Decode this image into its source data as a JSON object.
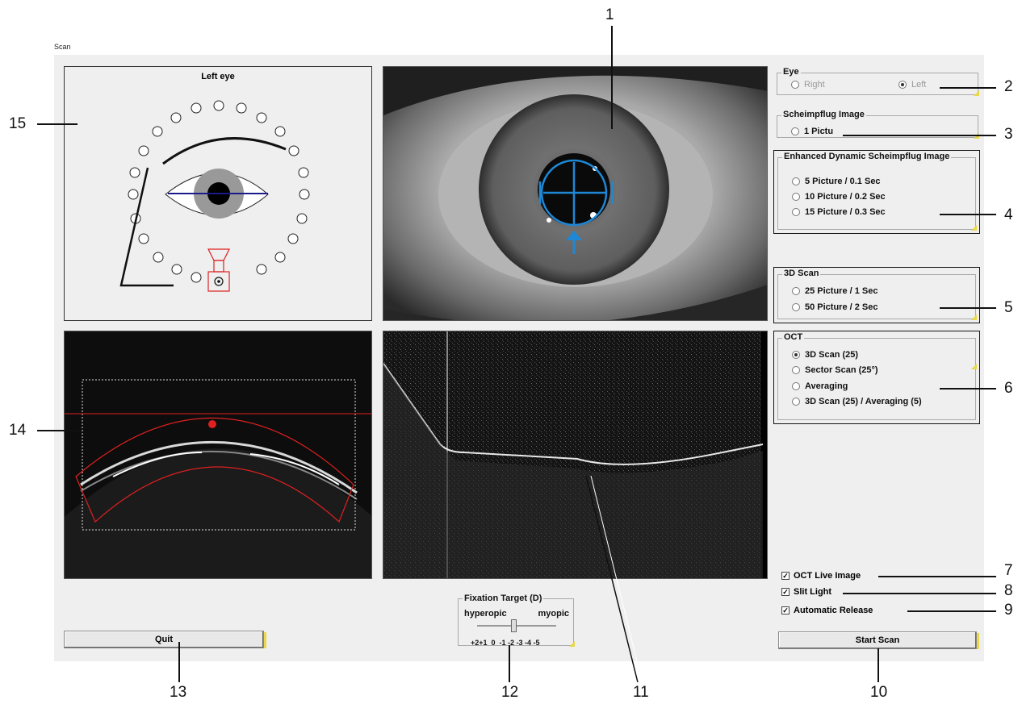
{
  "window": {
    "title": "Scan"
  },
  "eye_diagram": {
    "title": "Left eye"
  },
  "eye_group": {
    "legend": "Eye",
    "options": [
      {
        "label": "Right",
        "selected": false,
        "enabled": false
      },
      {
        "label": "Left",
        "selected": true,
        "enabled": false
      }
    ]
  },
  "scheimpflug_group": {
    "legend": "Scheimpflug Image",
    "options": [
      {
        "label": "1 Pictu",
        "selected": false
      }
    ]
  },
  "eds_group": {
    "legend": "Enhanced Dynamic Scheimpflug Image",
    "options": [
      {
        "label": "5 Picture / 0.1 Sec",
        "selected": false
      },
      {
        "label": "10 Picture / 0.2 Sec",
        "selected": false
      },
      {
        "label": "15 Picture / 0.3 Sec",
        "selected": false
      }
    ]
  },
  "scan3d_group": {
    "legend": "3D Scan",
    "options": [
      {
        "label": "25 Picture / 1 Sec",
        "selected": false
      },
      {
        "label": "50 Picture / 2 Sec",
        "selected": false
      }
    ]
  },
  "oct_group": {
    "legend": "OCT",
    "options": [
      {
        "label": "3D Scan (25)",
        "selected": true
      },
      {
        "label": "Sector Scan (25°)",
        "selected": false
      },
      {
        "label": "Averaging",
        "selected": false
      },
      {
        "label": "3D Scan (25) / Averaging (5)",
        "selected": false
      }
    ]
  },
  "checkboxes": [
    {
      "label": "OCT Live Image",
      "checked": true
    },
    {
      "label": "Slit Light",
      "checked": true
    },
    {
      "label": "Automatic Release",
      "checked": true
    }
  ],
  "buttons": {
    "quit": "Quit",
    "start_scan": "Start Scan"
  },
  "fixation": {
    "legend": "Fixation Target (D)",
    "left_label": "hyperopic",
    "right_label": "myopic",
    "scale": "+2+1  0  -1 -2 -3 -4 -5"
  },
  "callouts": [
    "1",
    "2",
    "3",
    "4",
    "5",
    "6",
    "7",
    "8",
    "9",
    "10",
    "11",
    "12",
    "13",
    "14",
    "15"
  ],
  "colors": {
    "accent_blue": "#1e88d6",
    "overlay_red": "#e02020",
    "indicator_yellow": "#e8d84a",
    "panel_bg": "#efefef"
  }
}
